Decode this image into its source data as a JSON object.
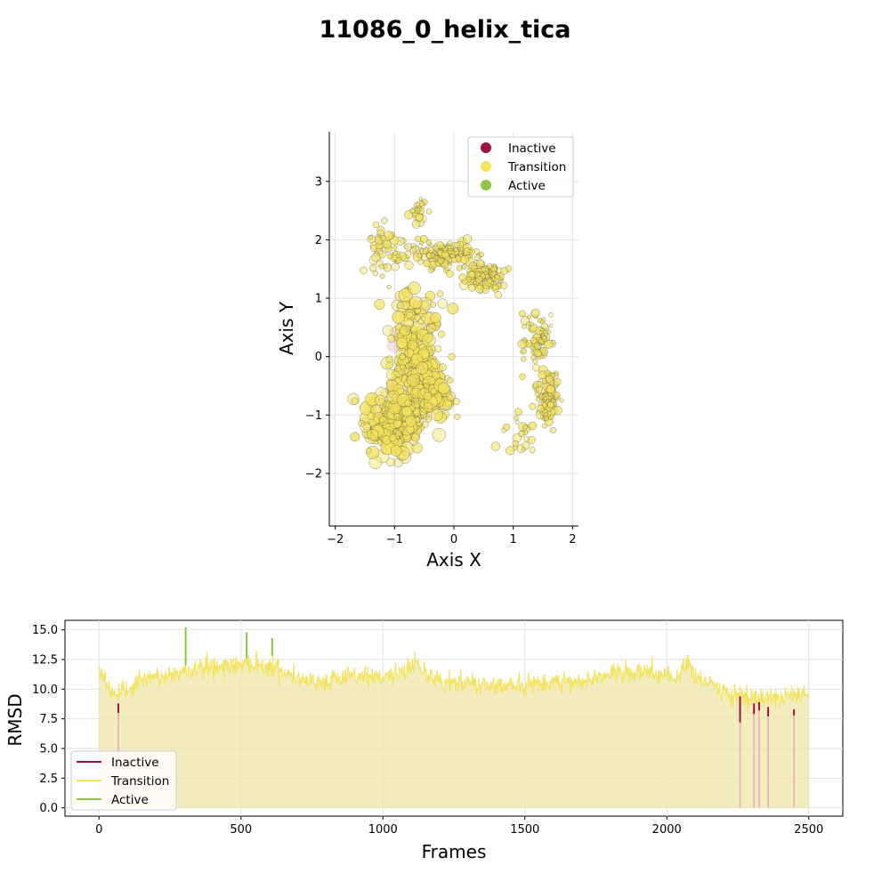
{
  "figure": {
    "title": "11086_0_helix_tica"
  },
  "legend": {
    "items": [
      {
        "label": "Inactive",
        "color": "#a50f3d"
      },
      {
        "label": "Transition",
        "color": "#f3e35d"
      },
      {
        "label": "Active",
        "color": "#8cc63e"
      }
    ]
  },
  "chart_data": [
    {
      "type": "scatter",
      "xlabel": "Axis X",
      "ylabel": "Axis Y",
      "xlim": [
        -2.1,
        2.1
      ],
      "ylim": [
        -2.9,
        3.85
      ],
      "xticks": [
        "−2",
        "−1",
        "0",
        "1",
        "2"
      ],
      "yticks": [
        "−2",
        "−1",
        "0",
        "1",
        "2",
        "3"
      ],
      "xtick_values": [
        -2,
        -1,
        0,
        1,
        2
      ],
      "ytick_values": [
        -2,
        -1,
        0,
        1,
        2,
        3
      ],
      "grid": true,
      "legend_position": "top-right",
      "series": [
        {
          "name": "Transition",
          "color": "#f3e35d",
          "edge": "#333333",
          "clusters": [
            {
              "cx": -1.0,
              "cy": -1.1,
              "rx": 0.45,
              "ry": 0.55,
              "n": 220
            },
            {
              "cx": -0.65,
              "cy": 0.1,
              "rx": 0.35,
              "ry": 0.9,
              "n": 220
            },
            {
              "cx": -0.35,
              "cy": -0.7,
              "rx": 0.3,
              "ry": 0.35,
              "n": 90
            },
            {
              "cx": -0.15,
              "cy": 1.75,
              "rx": 0.55,
              "ry": 0.2,
              "n": 140
            },
            {
              "cx": 0.55,
              "cy": 1.35,
              "rx": 0.3,
              "ry": 0.2,
              "n": 110
            },
            {
              "cx": 1.4,
              "cy": 0.3,
              "rx": 0.2,
              "ry": 0.45,
              "n": 80
            },
            {
              "cx": 1.6,
              "cy": -0.7,
              "rx": 0.15,
              "ry": 0.35,
              "n": 110
            },
            {
              "cx": -0.6,
              "cy": 2.45,
              "rx": 0.12,
              "ry": 0.2,
              "n": 25
            },
            {
              "cx": -1.2,
              "cy": 1.9,
              "rx": 0.25,
              "ry": 0.4,
              "n": 50
            },
            {
              "cx": 1.1,
              "cy": -1.3,
              "rx": 0.25,
              "ry": 0.3,
              "n": 25
            }
          ]
        },
        {
          "name": "Inactive",
          "color": "#a50f3d",
          "note": "few faint points near (-1.0, 0.2) and (-0.5, -0.4)"
        }
      ]
    },
    {
      "type": "line",
      "xlabel": "Frames",
      "ylabel": "RMSD",
      "xlim": [
        -120,
        2620
      ],
      "ylim": [
        -0.7,
        15.8
      ],
      "xticks": [
        "0",
        "500",
        "1000",
        "1500",
        "2000",
        "2500"
      ],
      "yticks": [
        "0.0",
        "2.5",
        "5.0",
        "7.5",
        "10.0",
        "12.5",
        "15.0"
      ],
      "xtick_values": [
        0,
        500,
        1000,
        1500,
        2000,
        2500
      ],
      "ytick_values": [
        0.0,
        2.5,
        5.0,
        7.5,
        10.0,
        12.5,
        15.0
      ],
      "grid": true,
      "legend_position": "lower-left",
      "n_frames": 2500,
      "baseline_profile": {
        "x": [
          0,
          20,
          60,
          100,
          150,
          200,
          300,
          350,
          450,
          550,
          620,
          700,
          800,
          900,
          1000,
          1080,
          1110,
          1140,
          1200,
          1300,
          1400,
          1500,
          1600,
          1700,
          1800,
          1950,
          2040,
          2070,
          2100,
          2150,
          2250,
          2300,
          2400,
          2500
        ],
        "y": [
          12.0,
          10.8,
          9.3,
          10.0,
          10.7,
          11.0,
          11.4,
          11.8,
          12.0,
          12.2,
          11.8,
          11.0,
          10.6,
          11.1,
          11.1,
          11.4,
          12.5,
          11.6,
          10.6,
          10.5,
          10.4,
          10.3,
          10.6,
          10.7,
          11.3,
          11.4,
          10.8,
          12.5,
          11.0,
          10.5,
          9.4,
          9.3,
          9.2,
          9.5
        ]
      },
      "inactive_segments": [
        {
          "x": 68,
          "low": 8.0,
          "high": 8.8
        },
        {
          "x": 2258,
          "low": 7.2,
          "high": 9.4
        },
        {
          "x": 2307,
          "low": 7.9,
          "high": 8.8
        },
        {
          "x": 2325,
          "low": 8.2,
          "high": 8.9
        },
        {
          "x": 2357,
          "low": 7.7,
          "high": 8.5
        },
        {
          "x": 2448,
          "low": 7.8,
          "high": 8.3
        }
      ],
      "active_spikes": [
        {
          "x": 305,
          "peak": 15.2,
          "base": 12.0
        },
        {
          "x": 520,
          "peak": 14.8,
          "base": 12.6
        },
        {
          "x": 610,
          "peak": 14.3,
          "base": 12.8
        }
      ],
      "series": [
        {
          "name": "Inactive",
          "color": "#a50f3d"
        },
        {
          "name": "Transition",
          "color": "#f3e35d"
        },
        {
          "name": "Active",
          "color": "#8cc63e"
        }
      ]
    }
  ]
}
